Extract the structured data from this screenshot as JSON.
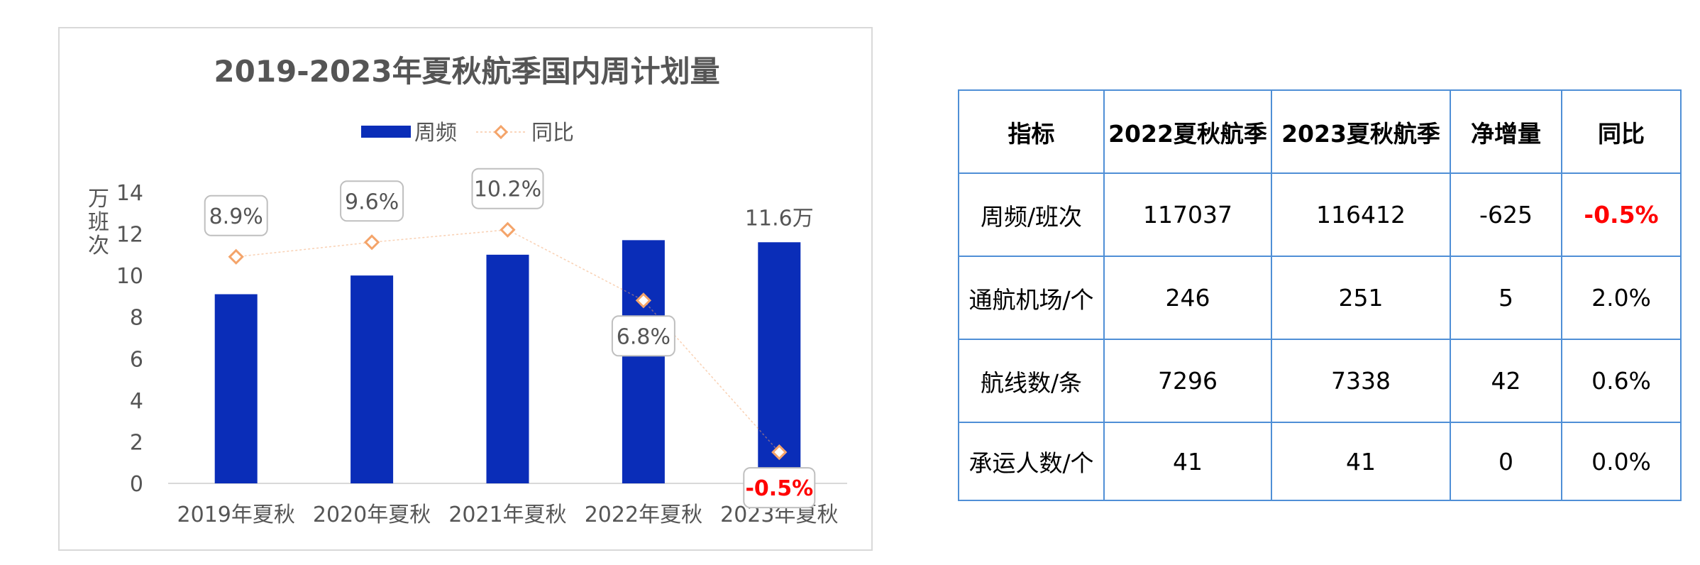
{
  "chart_data": {
    "type": "bar+line",
    "title": "2019-2023年夏秋航季国内周计划量",
    "ylabel": "万班次",
    "ylim": [
      0,
      14
    ],
    "yticks": [
      "0",
      "2",
      "4",
      "6",
      "8",
      "10",
      "12",
      "14"
    ],
    "categories": [
      "2019年夏秋",
      "2020年夏秋",
      "2021年夏秋",
      "2022年夏秋",
      "2023年夏秋"
    ],
    "series": [
      {
        "name": "周频",
        "type": "bar",
        "values": [
          9.1,
          10.0,
          11.0,
          11.7,
          11.6
        ],
        "color": "#0a2db8"
      },
      {
        "name": "同比",
        "type": "line",
        "values": [
          8.9,
          9.6,
          10.2,
          6.8,
          -0.5
        ],
        "labels": [
          "8.9%",
          "9.6%",
          "10.2%",
          "6.8%",
          "-0.5%"
        ],
        "color": "#f4a46a"
      }
    ],
    "bar_data_label": {
      "index": 4,
      "text": "11.6万"
    },
    "highlight_color": "#ff0000",
    "legend_position": "top-center"
  },
  "table": {
    "headers": [
      "指标",
      "2022夏秋航季",
      "2023夏秋航季",
      "净增量",
      "同比"
    ],
    "rows": [
      [
        "周频/班次",
        "117037",
        "116412",
        "-625",
        "-0.5%"
      ],
      [
        "通航机场/个",
        "246",
        "251",
        "5",
        "2.0%"
      ],
      [
        "航线数/条",
        "7296",
        "7338",
        "42",
        "0.6%"
      ],
      [
        "承运人数/个",
        "41",
        "41",
        "0",
        "0.0%"
      ]
    ],
    "border_color": "#4f8fd6"
  }
}
